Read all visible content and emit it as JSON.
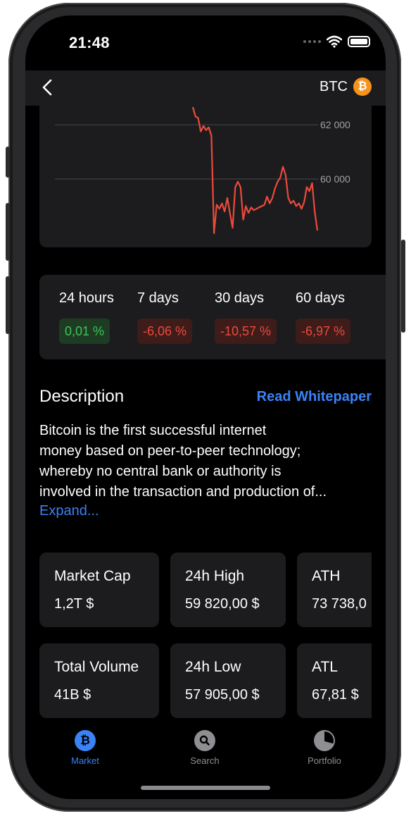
{
  "status_bar": {
    "time": "21:48"
  },
  "nav": {
    "title": "BTC",
    "coin_symbol": "₿",
    "coin_color": "#f7931a"
  },
  "chart_data": {
    "type": "line",
    "y_ticks": [
      "62 000",
      "60 000"
    ],
    "y_tick_values": [
      62000,
      60000
    ],
    "ylim": [
      58000,
      62700
    ],
    "series": [
      {
        "color": "#ec4a3c",
        "values": [
          62650,
          62300,
          62250,
          61750,
          61950,
          61800,
          61900,
          61600,
          58000,
          59050,
          58900,
          59100,
          58800,
          59300,
          58750,
          58200,
          59700,
          59900,
          59700,
          58500,
          59000,
          58750,
          58950,
          58850,
          58900,
          58950,
          59000,
          59050,
          59350,
          59100,
          59300,
          59650,
          59900,
          60050,
          60450,
          60150,
          59300,
          59100,
          59200,
          59000,
          59100,
          58900,
          59150,
          59700,
          59550,
          59850,
          58800,
          58100
        ]
      }
    ]
  },
  "performance": [
    {
      "label": "24 hours",
      "value": "0,01 %",
      "positive": true
    },
    {
      "label": "7 days",
      "value": "-6,06 %",
      "positive": false
    },
    {
      "label": "30 days",
      "value": "-10,57 %",
      "positive": false
    },
    {
      "label": "60 days",
      "value": "-6,97 %",
      "positive": false
    }
  ],
  "description": {
    "title": "Description",
    "link": "Read Whitepaper",
    "lines": [
      "Bitcoin is the first successful internet",
      "money based on peer-to-peer technology;",
      "whereby no central bank or authority is",
      "involved in the transaction and production of..."
    ],
    "expand": "Expand..."
  },
  "stats": [
    {
      "label": "Market Cap",
      "value": "1,2T $"
    },
    {
      "label": "24h High",
      "value": "59 820,00 $"
    },
    {
      "label": "ATH",
      "value": "73 738,0"
    },
    {
      "label": "Total Volume",
      "value": "41B $"
    },
    {
      "label": "24h Low",
      "value": "57 905,00 $"
    },
    {
      "label": "ATL",
      "value": "67,81 $"
    }
  ],
  "tabs": [
    {
      "label": "Market",
      "icon": "bitcoin-icon",
      "active": true
    },
    {
      "label": "Search",
      "icon": "search-icon",
      "active": false
    },
    {
      "label": "Portfolio",
      "icon": "pie-chart-icon",
      "active": false
    }
  ],
  "colors": {
    "accent": "#3a82f6",
    "positive": "#3ec45a",
    "negative": "#ec4a3c"
  }
}
